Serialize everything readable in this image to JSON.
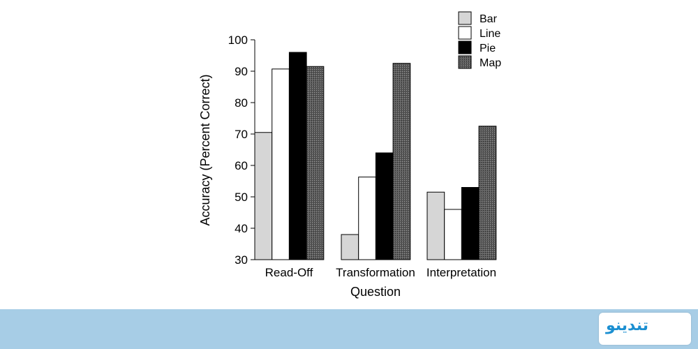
{
  "chart_data": {
    "type": "bar",
    "xlabel": "Question",
    "ylabel": "Accuracy (Percent Correct)",
    "categories": [
      "Read-Off",
      "Transformation",
      "Interpretation"
    ],
    "ylim": [
      30,
      100
    ],
    "yticks": [
      30,
      40,
      50,
      60,
      70,
      80,
      90,
      100
    ],
    "legend_position": "top-right",
    "series": [
      {
        "name": "Bar",
        "values": [
          70.5,
          38,
          51.5
        ],
        "color": "#d6d6d6"
      },
      {
        "name": "Line",
        "values": [
          90.7,
          56.3,
          46
        ],
        "color": "#ffffff"
      },
      {
        "name": "Pie",
        "values": [
          96,
          64,
          53
        ],
        "color": "#000000"
      },
      {
        "name": "Map",
        "values": [
          91.5,
          92.5,
          72.5
        ],
        "color": "#5a5a5a"
      }
    ]
  },
  "branding": {
    "logo_text": "تندینو",
    "footer_color": "#a7cde6"
  }
}
